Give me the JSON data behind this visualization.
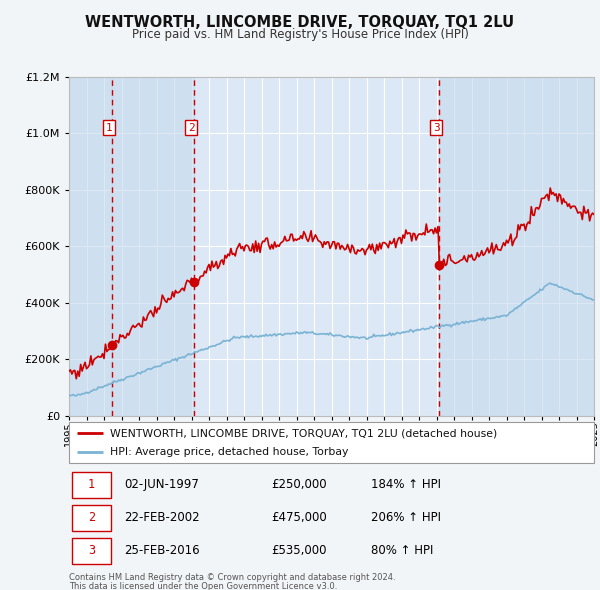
{
  "title": "WENTWORTH, LINCOMBE DRIVE, TORQUAY, TQ1 2LU",
  "subtitle": "Price paid vs. HM Land Registry's House Price Index (HPI)",
  "legend_line1": "WENTWORTH, LINCOMBE DRIVE, TORQUAY, TQ1 2LU (detached house)",
  "legend_line2": "HPI: Average price, detached house, Torbay",
  "footer1": "Contains HM Land Registry data © Crown copyright and database right 2024.",
  "footer2": "This data is licensed under the Open Government Licence v3.0.",
  "transactions": [
    {
      "num": 1,
      "date": "02-JUN-1997",
      "price": "£250,000",
      "hpi": "184% ↑ HPI",
      "year": 1997.43
    },
    {
      "num": 2,
      "date": "22-FEB-2002",
      "price": "£475,000",
      "hpi": "206% ↑ HPI",
      "year": 2002.14
    },
    {
      "num": 3,
      "date": "25-FEB-2016",
      "price": "£535,000",
      "hpi": "80% ↑ HPI",
      "year": 2016.14
    }
  ],
  "sale_prices": [
    250000,
    475000,
    535000
  ],
  "hpi_line_color": "#7ab3d4",
  "price_line_color": "#cc0000",
  "background_color": "#f2f5f8",
  "plot_bg_color": "#dce8f5",
  "shade_color": "#c5d9ed",
  "grid_color": "#ffffff",
  "y_max": 1200000,
  "y_min": 0,
  "x_min": 1995,
  "x_max": 2025
}
